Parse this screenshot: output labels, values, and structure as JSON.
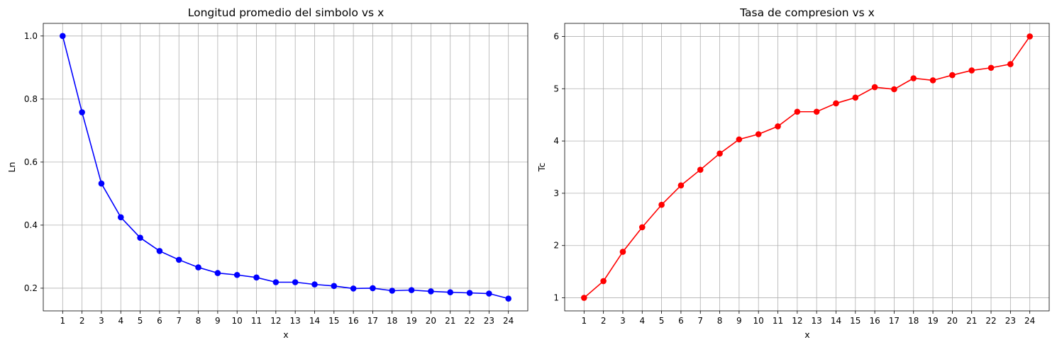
{
  "chart_data": [
    {
      "type": "line",
      "title": "Longitud promedio del simbolo vs x",
      "xlabel": "x",
      "ylabel": "Ln",
      "x": [
        1,
        2,
        3,
        4,
        5,
        6,
        7,
        8,
        9,
        10,
        11,
        12,
        13,
        14,
        15,
        16,
        17,
        18,
        19,
        20,
        21,
        22,
        23,
        24
      ],
      "xticks": [
        1,
        2,
        3,
        4,
        5,
        6,
        7,
        8,
        9,
        10,
        11,
        12,
        13,
        14,
        15,
        16,
        17,
        18,
        19,
        20,
        21,
        22,
        23,
        24
      ],
      "yticks": [
        0.2,
        0.4,
        0.6,
        0.8,
        1.0
      ],
      "ytick_labels": [
        "0.2",
        "0.4",
        "0.6",
        "0.8",
        "1.0"
      ],
      "xlim": [
        0,
        25
      ],
      "ylim": [
        0.128,
        1.04
      ],
      "grid": true,
      "series": [
        {
          "color": "#0000ff",
          "marker": "circle",
          "values": [
            1.0,
            0.758,
            0.532,
            0.425,
            0.36,
            0.318,
            0.29,
            0.266,
            0.248,
            0.242,
            0.234,
            0.219,
            0.219,
            0.212,
            0.207,
            0.199,
            0.2,
            0.192,
            0.194,
            0.19,
            0.187,
            0.185,
            0.183,
            0.167
          ]
        }
      ]
    },
    {
      "type": "line",
      "title": "Tasa de compresion vs x",
      "xlabel": "x",
      "ylabel": "Tc",
      "x": [
        1,
        2,
        3,
        4,
        5,
        6,
        7,
        8,
        9,
        10,
        11,
        12,
        13,
        14,
        15,
        16,
        17,
        18,
        19,
        20,
        21,
        22,
        23,
        24
      ],
      "xticks": [
        1,
        2,
        3,
        4,
        5,
        6,
        7,
        8,
        9,
        10,
        11,
        12,
        13,
        14,
        15,
        16,
        17,
        18,
        19,
        20,
        21,
        22,
        23,
        24
      ],
      "yticks": [
        1,
        2,
        3,
        4,
        5,
        6
      ],
      "ytick_labels": [
        "1",
        "2",
        "3",
        "4",
        "5",
        "6"
      ],
      "xlim": [
        0,
        25
      ],
      "ylim": [
        0.75,
        6.25
      ],
      "grid": true,
      "series": [
        {
          "color": "#ff0000",
          "marker": "circle",
          "values": [
            1.0,
            1.32,
            1.88,
            2.35,
            2.78,
            3.15,
            3.45,
            3.76,
            4.03,
            4.13,
            4.28,
            4.56,
            4.56,
            4.72,
            4.83,
            5.03,
            4.99,
            5.2,
            5.16,
            5.26,
            5.35,
            5.4,
            5.47,
            6.0
          ]
        }
      ]
    }
  ]
}
